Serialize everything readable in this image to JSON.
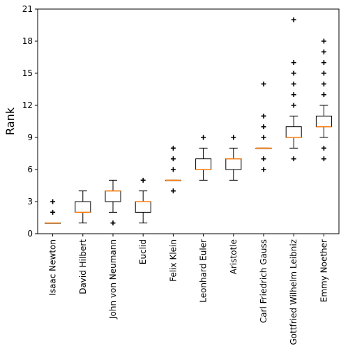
{
  "chart_data": {
    "type": "boxplot",
    "title": "",
    "xlabel": "",
    "ylabel": "Rank",
    "ylim": [
      0,
      21
    ],
    "yticks": [
      0,
      3,
      6,
      9,
      12,
      15,
      18,
      21
    ],
    "grid": false,
    "colors": {
      "box": "#000000",
      "median": "#ff7f0e",
      "flier": "#000000"
    },
    "categories": [
      "Isaac Newton",
      "David Hilbert",
      "John von Neumann",
      "Euclid",
      "Felix Klein",
      "Leonhard Euler",
      "Aristotle",
      "Carl Friedrich Gauss",
      "Gottfried Wilhelm Leibniz",
      "Emmy Noether"
    ],
    "boxes": [
      {
        "whislo": 1,
        "q1": 1,
        "med": 1,
        "q3": 1,
        "whishi": 1,
        "fliers": [
          2,
          3
        ]
      },
      {
        "whislo": 1,
        "q1": 2,
        "med": 2,
        "q3": 3,
        "whishi": 4,
        "fliers": []
      },
      {
        "whislo": 2,
        "q1": 3,
        "med": 4,
        "q3": 4,
        "whishi": 5,
        "fliers": [
          1
        ]
      },
      {
        "whislo": 1,
        "q1": 2,
        "med": 3,
        "q3": 3,
        "whishi": 4,
        "fliers": [
          5
        ]
      },
      {
        "whislo": 5,
        "q1": 5,
        "med": 5,
        "q3": 5,
        "whishi": 5,
        "fliers": [
          4,
          6,
          7,
          8
        ]
      },
      {
        "whislo": 5,
        "q1": 6,
        "med": 6,
        "q3": 7,
        "whishi": 8,
        "fliers": [
          9
        ]
      },
      {
        "whislo": 5,
        "q1": 6,
        "med": 7,
        "q3": 7,
        "whishi": 8,
        "fliers": [
          9
        ]
      },
      {
        "whislo": 8,
        "q1": 8,
        "med": 8,
        "q3": 8,
        "whishi": 8,
        "fliers": [
          6,
          7,
          9,
          10,
          11,
          14
        ]
      },
      {
        "whislo": 8,
        "q1": 9,
        "med": 9,
        "q3": 10,
        "whishi": 11,
        "fliers": [
          7,
          12,
          13,
          14,
          15,
          16,
          20
        ]
      },
      {
        "whislo": 9,
        "q1": 10,
        "med": 10,
        "q3": 11,
        "whishi": 12,
        "fliers": [
          7,
          8,
          13,
          14,
          15,
          16,
          17,
          18
        ]
      }
    ]
  }
}
